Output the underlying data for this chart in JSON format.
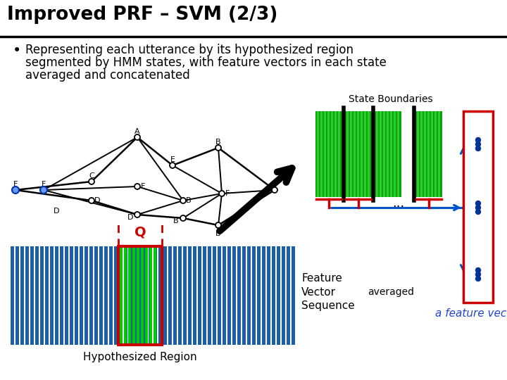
{
  "title": "Improved PRF – SVM (2/3)",
  "bullet_line1": "Representing each utterance by its hypothesized region",
  "bullet_line2": "segmented by HMM states, with feature vectors in each state",
  "bullet_line3": "averaged and concatenated",
  "state_boundaries_label": "State Boundaries",
  "hypothesized_region_label": "Hypothesized Region",
  "feature_vector_label": "Feature\nVector\nSequence",
  "averaged_label": "averaged",
  "a_feature_vector_label": "a feature vector",
  "Q_label": "Q",
  "bg_color": "#ffffff",
  "title_color": "#000000",
  "blue_bar_color": "#1a5fa8",
  "green_color": "#00bb00",
  "red_color": "#cc0000",
  "blue_arrow_color": "#0055cc",
  "dot_color": "#003399"
}
